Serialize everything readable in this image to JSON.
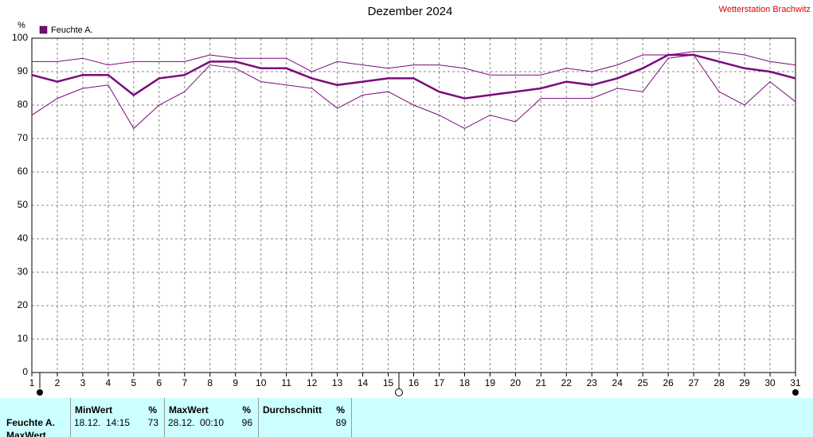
{
  "chart_data": {
    "type": "line",
    "title": "Dezember 2024",
    "station": "Wetterstation Brachwitz",
    "y_unit": "%",
    "categories": [
      "1",
      "2",
      "3",
      "4",
      "5",
      "6",
      "7",
      "8",
      "9",
      "10",
      "11",
      "12",
      "13",
      "14",
      "15",
      "16",
      "17",
      "18",
      "19",
      "20",
      "21",
      "22",
      "23",
      "24",
      "25",
      "26",
      "27",
      "28",
      "29",
      "30",
      "31"
    ],
    "series": [
      {
        "name": "Feuchte A.",
        "color": "#7a0a7a",
        "width": 2.5,
        "values": [
          89,
          87,
          89,
          89,
          83,
          88,
          89,
          93,
          93,
          91,
          91,
          88,
          86,
          87,
          88,
          88,
          84,
          82,
          83,
          84,
          85,
          87,
          86,
          88,
          91,
          95,
          95,
          93,
          91,
          90,
          88
        ]
      },
      {
        "color": "#7a0a7a",
        "width": 1,
        "values": [
          93,
          93,
          94,
          92,
          93,
          93,
          93,
          95,
          94,
          94,
          94,
          90,
          93,
          92,
          91,
          92,
          92,
          91,
          89,
          89,
          89,
          91,
          90,
          92,
          95,
          95,
          96,
          96,
          95,
          93,
          92
        ]
      },
      {
        "color": "#7a0a7a",
        "width": 1,
        "values": [
          77,
          82,
          85,
          86,
          73,
          80,
          84,
          92,
          91,
          87,
          86,
          85,
          79,
          83,
          84,
          80,
          77,
          73,
          77,
          75,
          82,
          82,
          82,
          85,
          84,
          94,
          95,
          84,
          80,
          87,
          81
        ]
      }
    ],
    "ylim": [
      0,
      100
    ],
    "yticks": [
      0,
      10,
      20,
      30,
      40,
      50,
      60,
      70,
      80,
      90,
      100
    ],
    "grid": true
  },
  "table": {
    "row_labels": [
      "Feuchte A.",
      "MaxWert"
    ],
    "columns": [
      {
        "header": "MinWert",
        "unit": "%",
        "time": "18.12.  14:15",
        "value": 73
      },
      {
        "header": "MaxWert",
        "unit": "%",
        "time": "28.12.  00:10",
        "value": 96
      },
      {
        "header": "Durchschnitt",
        "unit": "%",
        "value": 89
      }
    ]
  }
}
